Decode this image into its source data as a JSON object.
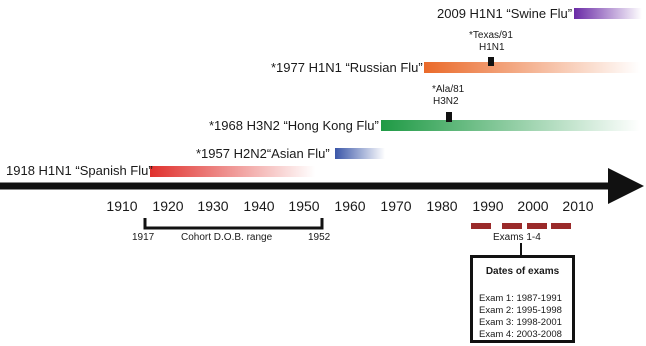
{
  "pandemics": [
    {
      "label": "2009 H1N1 “Swine Flu”",
      "color": "#6a2aa6"
    },
    {
      "label": "*1977 H1N1 “Russian Flu”",
      "color": "#ea6a2a"
    },
    {
      "label": "*1968 H3N2 “Hong Kong Flu”",
      "color": "#1f9a45"
    },
    {
      "label": "*1957 H2N2“Asian Flu”",
      "color": "#3a56a8"
    },
    {
      "label": "1918 H1N1 “Spanish Flu”",
      "color": "#e0312d"
    }
  ],
  "strains": [
    {
      "label_line1": "*Texas/91",
      "label_line2": "H1N1"
    },
    {
      "label_line1": "*Ala/81",
      "label_line2": "H3N2"
    }
  ],
  "axis": {
    "ticks": [
      "1910",
      "1920",
      "1930",
      "1940",
      "1950",
      "1960",
      "1970",
      "1980",
      "1990",
      "2000",
      "2010"
    ]
  },
  "cohort": {
    "start": "1917",
    "end": "1952",
    "label": "Cohort D.O.B. range"
  },
  "exams": {
    "label": "Exams 1-4",
    "color": "#9a2a2a"
  },
  "legend": {
    "title": "Dates of exams",
    "rows": [
      "Exam 1: 1987-1991",
      "Exam 2: 1995-1998",
      "Exam 3: 1998-2001",
      "Exam 4: 2003-2008"
    ]
  }
}
